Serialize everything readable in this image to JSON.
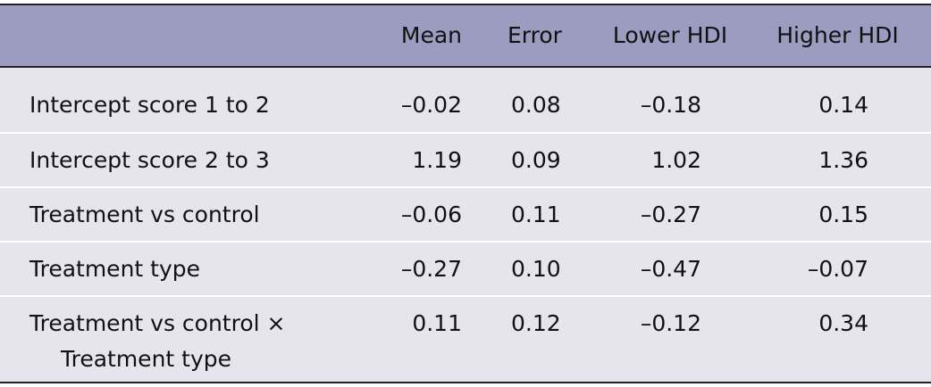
{
  "table": {
    "columns": [
      "Mean",
      "Error",
      "Lower HDI",
      "Higher HDI"
    ],
    "rows": [
      {
        "label": "Intercept score 1 to 2",
        "values": [
          "–0.02",
          "0.08",
          "–0.18",
          "0.14"
        ]
      },
      {
        "label": "Intercept score 2 to 3",
        "values": [
          "1.19",
          "0.09",
          "1.02",
          "1.36"
        ]
      },
      {
        "label": "Treatment vs control",
        "values": [
          "–0.06",
          "0.11",
          "–0.27",
          "0.15"
        ]
      },
      {
        "label": "Treatment type",
        "values": [
          "–0.27",
          "0.10",
          "–0.47",
          "–0.07"
        ]
      },
      {
        "label": "Treatment vs control × Treatment type",
        "values": [
          "0.11",
          "0.12",
          "–0.12",
          "0.34"
        ]
      }
    ]
  }
}
